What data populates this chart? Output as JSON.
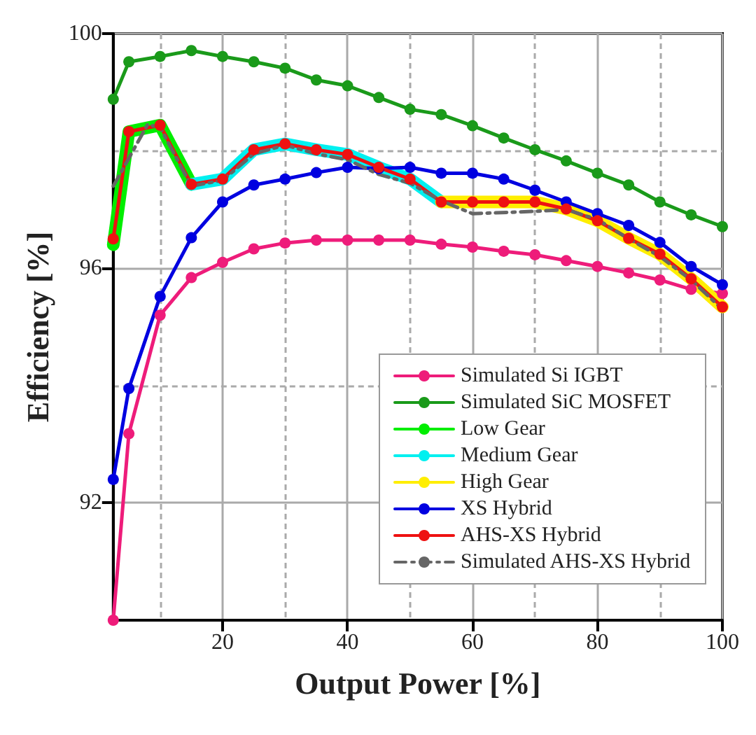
{
  "chart_data": {
    "type": "line",
    "xlabel": "Output Power [%]",
    "ylabel": "Efficiency [%]",
    "x": [
      2.5,
      5,
      10,
      15,
      20,
      25,
      30,
      35,
      40,
      45,
      50,
      55,
      60,
      65,
      70,
      75,
      80,
      85,
      90,
      95,
      100
    ],
    "series": [
      {
        "name": "Simulated Si IGBT",
        "color": "#ee1c7a",
        "marker": "circle",
        "line_style": "solid",
        "values": [
          90.0,
          93.18,
          95.2,
          95.84,
          96.1,
          96.33,
          96.43,
          96.48,
          96.48,
          96.48,
          96.48,
          96.41,
          96.36,
          96.29,
          96.23,
          96.13,
          96.03,
          95.92,
          95.8,
          95.64,
          95.57
        ]
      },
      {
        "name": "Simulated SiC MOSFET",
        "color": "#1a9a1a",
        "marker": "circle",
        "line_style": "solid",
        "values": [
          98.88,
          99.52,
          99.61,
          99.71,
          99.61,
          99.52,
          99.41,
          99.21,
          99.11,
          98.91,
          98.71,
          98.62,
          98.43,
          98.22,
          98.02,
          97.83,
          97.62,
          97.42,
          97.13,
          96.91,
          96.71
        ]
      },
      {
        "name": "Low Gear",
        "color": "#00ee00",
        "marker": "none",
        "line_style": "solid",
        "values": [
          96.4,
          98.33,
          98.44,
          97.43,
          null,
          null,
          null,
          null,
          null,
          null,
          null,
          null,
          null,
          null,
          null,
          null,
          null,
          null,
          null,
          null,
          null
        ]
      },
      {
        "name": "Medium Gear",
        "color": "#00f0f0",
        "marker": "none",
        "line_style": "solid",
        "values": [
          null,
          null,
          null,
          97.43,
          97.52,
          98.02,
          98.12,
          98.02,
          97.94,
          97.72,
          97.52,
          97.13,
          null,
          null,
          null,
          null,
          null,
          null,
          null,
          null,
          null
        ]
      },
      {
        "name": "High Gear",
        "color": "#ffee00",
        "marker": "none",
        "line_style": "solid",
        "values": [
          null,
          null,
          null,
          null,
          null,
          null,
          null,
          null,
          null,
          null,
          null,
          97.13,
          97.13,
          97.13,
          97.13,
          97.01,
          96.81,
          96.51,
          96.24,
          95.82,
          95.34
        ]
      },
      {
        "name": "XS Hybrid",
        "color": "#0000e0",
        "marker": "circle",
        "line_style": "solid",
        "values": [
          92.4,
          93.95,
          95.52,
          96.52,
          97.13,
          97.42,
          97.52,
          97.63,
          97.72,
          97.7,
          97.72,
          97.62,
          97.62,
          97.52,
          97.33,
          97.13,
          96.93,
          96.73,
          96.44,
          96.03,
          95.72
        ]
      },
      {
        "name": "AHS-XS Hybrid",
        "color": "#ee1111",
        "marker": "circle",
        "line_style": "solid",
        "values": [
          96.5,
          98.33,
          98.44,
          97.43,
          97.52,
          98.02,
          98.12,
          98.02,
          97.94,
          97.72,
          97.52,
          97.13,
          97.13,
          97.13,
          97.13,
          97.01,
          96.81,
          96.51,
          96.24,
          95.82,
          95.34
        ]
      },
      {
        "name": "Simulated AHS-XS Hybrid",
        "color": "#666666",
        "marker": "none",
        "line_style": "dashed",
        "x": [
          2.5,
          8,
          10,
          15,
          20,
          25,
          30,
          35,
          40,
          45,
          50,
          55,
          60,
          70,
          75,
          80,
          85,
          90,
          95,
          100
        ],
        "values": [
          97.4,
          98.45,
          98.4,
          97.4,
          97.5,
          97.95,
          98.1,
          97.95,
          97.85,
          97.6,
          97.45,
          97.15,
          96.93,
          96.97,
          97.0,
          96.83,
          96.5,
          96.2,
          95.8,
          95.3
        ]
      }
    ],
    "xlim": [
      2.5,
      100
    ],
    "xticks": [
      {
        "value": 10,
        "label": null
      },
      20,
      {
        "value": 30,
        "label": null
      },
      40,
      {
        "value": 50,
        "label": null
      },
      60,
      {
        "value": 70,
        "label": null
      },
      80,
      {
        "value": 90,
        "label": null
      },
      100
    ],
    "ylim": [
      90,
      100
    ],
    "yticks": [
      92,
      {
        "value": 94,
        "label": null
      },
      96,
      {
        "value": 98,
        "label": null
      },
      100
    ],
    "grid": true,
    "legend": "bottom right"
  }
}
